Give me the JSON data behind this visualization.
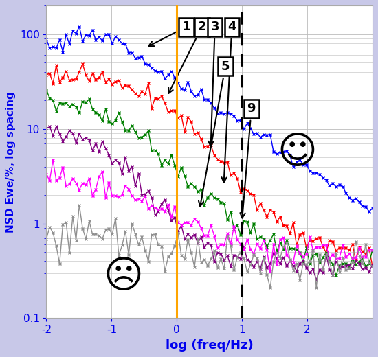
{
  "title": "",
  "xlabel": "log (freq/Hz)",
  "ylabel": "NSD Ewe/%, log spacing",
  "xlim": [
    -2,
    3
  ],
  "ylim": [
    0.1,
    200
  ],
  "xlabel_color": "#0000EE",
  "ylabel_color": "#0000EE",
  "fig_bg_color": "#C8C8E8",
  "plot_bg_color": "#FFFFFF",
  "orange_line_x": 0.0,
  "dashed_line_x": 1.0,
  "series_colors": [
    "#0000FF",
    "#FF0000",
    "#008000",
    "#800080",
    "#FF00FF",
    "#909090"
  ],
  "grid_color": "#BBBBBB",
  "tick_color": "#0000EE",
  "annotation_fontsize": 13,
  "xlabel_fontsize": 13,
  "ylabel_fontsize": 11
}
